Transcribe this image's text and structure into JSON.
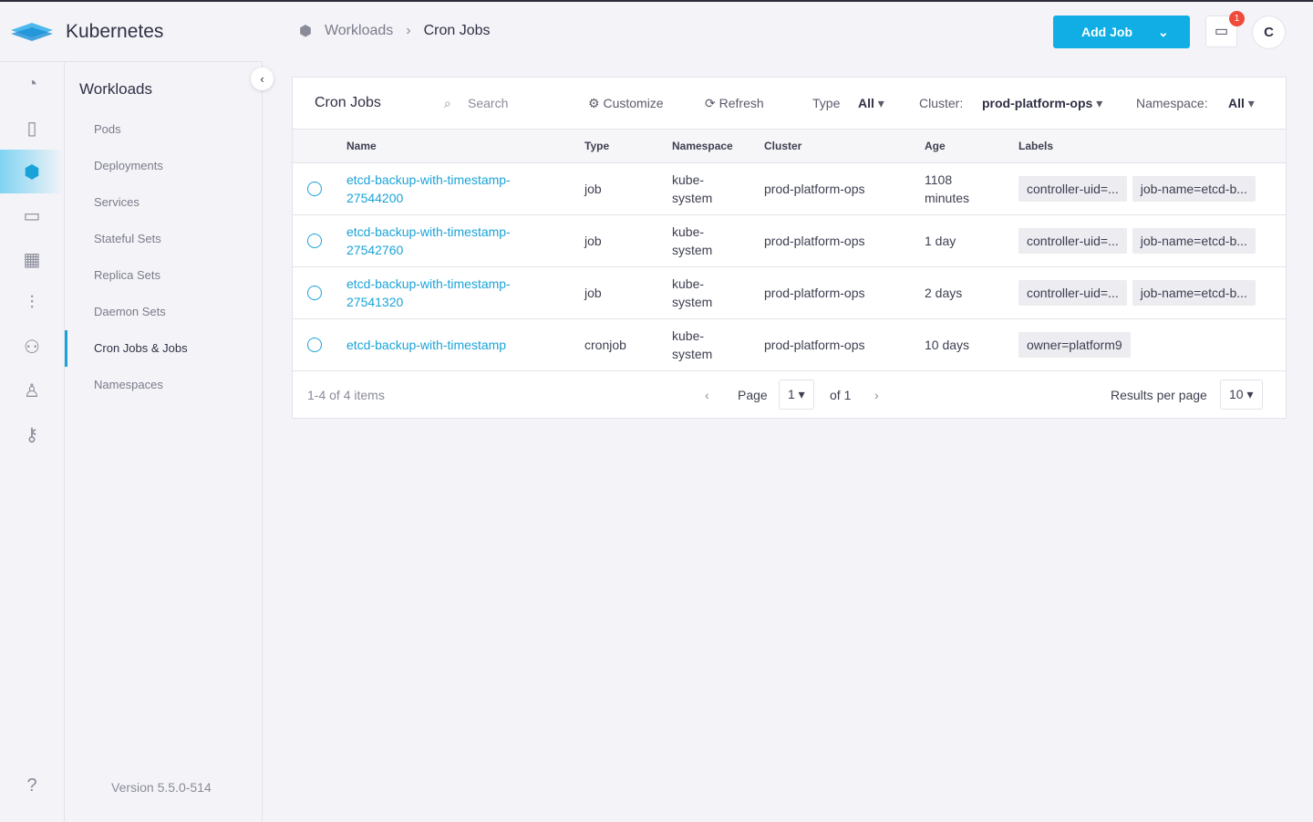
{
  "app": {
    "title": "Kubernetes",
    "version": "Version 5.5.0-514"
  },
  "rail": [
    "dashboard-icon",
    "server-icon",
    "workloads-icon",
    "storage-icon",
    "grid-icon",
    "analytics-icon",
    "users-icon",
    "user-shield-icon",
    "key-icon",
    "help-icon"
  ],
  "nav": {
    "title": "Workloads",
    "items": [
      {
        "label": "Pods"
      },
      {
        "label": "Deployments"
      },
      {
        "label": "Services"
      },
      {
        "label": "Stateful Sets"
      },
      {
        "label": "Replica Sets"
      },
      {
        "label": "Daemon Sets"
      },
      {
        "label": "Cron Jobs & Jobs",
        "selected": true
      },
      {
        "label": "Namespaces"
      }
    ]
  },
  "breadcrumb": {
    "parent": "Workloads",
    "current": "Cron Jobs"
  },
  "header": {
    "add_job": "Add Job",
    "notifications": "1",
    "avatar": "C"
  },
  "toolbar": {
    "title": "Cron Jobs",
    "search_placeholder": "Search",
    "customize": "Customize",
    "refresh": "Refresh",
    "type_label": "Type",
    "type_value": "All",
    "cluster_label": "Cluster:",
    "cluster_value": "prod-platform-ops",
    "namespace_label": "Namespace:",
    "namespace_value": "All"
  },
  "table": {
    "columns": [
      "Name",
      "Type",
      "Namespace",
      "Cluster",
      "Age",
      "Labels"
    ],
    "rows": [
      {
        "name1": "etcd-backup-with-timestamp-",
        "name2": "27544200",
        "type": "job",
        "ns1": "kube-",
        "ns2": "system",
        "cluster": "prod-platform-ops",
        "age1": "1108",
        "age2": "minutes",
        "labels": [
          "controller-uid=...",
          "job-name=etcd-b..."
        ]
      },
      {
        "name1": "etcd-backup-with-timestamp-",
        "name2": "27542760",
        "type": "job",
        "ns1": "kube-",
        "ns2": "system",
        "cluster": "prod-platform-ops",
        "age1": "1 day",
        "age2": "",
        "labels": [
          "controller-uid=...",
          "job-name=etcd-b..."
        ]
      },
      {
        "name1": "etcd-backup-with-timestamp-",
        "name2": "27541320",
        "type": "job",
        "ns1": "kube-",
        "ns2": "system",
        "cluster": "prod-platform-ops",
        "age1": "2 days",
        "age2": "",
        "labels": [
          "controller-uid=...",
          "job-name=etcd-b..."
        ]
      },
      {
        "name1": "etcd-backup-with-timestamp",
        "name2": "",
        "type": "cronjob",
        "ns1": "kube-",
        "ns2": "system",
        "cluster": "prod-platform-ops",
        "age1": "10 days",
        "age2": "",
        "labels": [
          "owner=platform9"
        ]
      }
    ]
  },
  "footer": {
    "count": "1-4 of 4 items",
    "page_label": "Page",
    "page": "1",
    "of": "of 1",
    "per_page_label": "Results per page",
    "per_page": "10"
  }
}
